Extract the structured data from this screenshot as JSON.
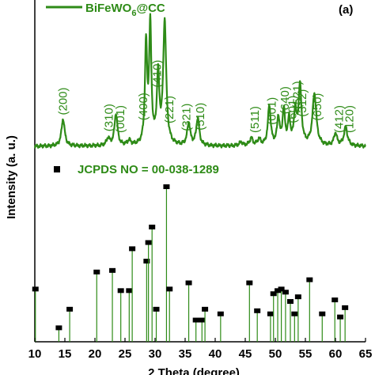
{
  "colors": {
    "pattern": "#2e8b17",
    "marker": "#000000",
    "axis": "#000000"
  },
  "chart_data": {
    "type": "line",
    "panel_label": "(a)",
    "xlabel": "2 Theta (degree)",
    "ylabel": "Intensity (a. u.)",
    "xlim": [
      10,
      65
    ],
    "x_ticks": [
      10,
      15,
      20,
      25,
      30,
      35,
      40,
      45,
      50,
      55,
      60,
      65
    ],
    "legend": [
      {
        "label": "BiFeWO6@CC",
        "label_main": "BiFeWO",
        "label_sub": "6",
        "label_tail": "@CC",
        "style": "green-line"
      },
      {
        "label": "JCPDS NO = 00-038-1289",
        "style": "black-square"
      }
    ],
    "series": [
      {
        "name": "BiFeWO6@CC",
        "baseline": 0.02,
        "peaks": [
          {
            "x": 14.7,
            "h": 0.22,
            "w": 0.32
          },
          {
            "x": 22.2,
            "h": 0.06,
            "w": 0.3
          },
          {
            "x": 23.5,
            "h": 0.26,
            "w": 0.3
          },
          {
            "x": 25.7,
            "h": 0.04,
            "w": 0.3
          },
          {
            "x": 28.5,
            "h": 0.8,
            "w": 0.22
          },
          {
            "x": 29.2,
            "h": 0.95,
            "w": 0.22
          },
          {
            "x": 30.5,
            "h": 0.55,
            "w": 0.25
          },
          {
            "x": 31.6,
            "h": 1.0,
            "w": 0.3
          },
          {
            "x": 35.6,
            "h": 0.18,
            "w": 0.3
          },
          {
            "x": 37.1,
            "h": 0.22,
            "w": 0.3
          },
          {
            "x": 44.3,
            "h": 0.03,
            "w": 0.3
          },
          {
            "x": 46.0,
            "h": 0.06,
            "w": 0.3
          },
          {
            "x": 47.3,
            "h": 0.05,
            "w": 0.3
          },
          {
            "x": 49.0,
            "h": 0.32,
            "w": 0.28
          },
          {
            "x": 50.5,
            "h": 0.22,
            "w": 0.25
          },
          {
            "x": 51.4,
            "h": 0.28,
            "w": 0.25
          },
          {
            "x": 52.3,
            "h": 0.2,
            "w": 0.25
          },
          {
            "x": 53.3,
            "h": 0.26,
            "w": 0.25
          },
          {
            "x": 54.1,
            "h": 0.48,
            "w": 0.3
          },
          {
            "x": 56.5,
            "h": 0.42,
            "w": 0.38
          },
          {
            "x": 60.0,
            "h": 0.1,
            "w": 0.3
          },
          {
            "x": 61.7,
            "h": 0.15,
            "w": 0.35
          }
        ],
        "peak_labels": [
          {
            "x": 14.7,
            "text": "(200)"
          },
          {
            "x": 22.3,
            "text": "(310)"
          },
          {
            "x": 24.2,
            "text": "(001)"
          },
          {
            "x": 28.0,
            "text": "(400)"
          },
          {
            "x": 30.3,
            "text": "(410)"
          },
          {
            "x": 32.4,
            "text": "(221)"
          },
          {
            "x": 35.2,
            "text": "(321)"
          },
          {
            "x": 37.5,
            "text": "(510)"
          },
          {
            "x": 46.6,
            "text": "(511)"
          },
          {
            "x": 49.4,
            "text": "(001)"
          },
          {
            "x": 51.6,
            "text": "(640)"
          },
          {
            "x": 52.8,
            "text": "(601)"
          },
          {
            "x": 53.6,
            "text": "(521)"
          },
          {
            "x": 54.5,
            "text": "(312)"
          },
          {
            "x": 57.0,
            "text": "(650)"
          },
          {
            "x": 60.6,
            "text": "(412)"
          },
          {
            "x": 62.3,
            "text": "(120)"
          }
        ]
      },
      {
        "name": "JCPDS NO = 00-038-1289",
        "type": "stick",
        "points": [
          {
            "x": 10.1,
            "y": 0.34
          },
          {
            "x": 14.0,
            "y": 0.09
          },
          {
            "x": 15.8,
            "y": 0.21
          },
          {
            "x": 20.3,
            "y": 0.45
          },
          {
            "x": 22.9,
            "y": 0.46
          },
          {
            "x": 24.3,
            "y": 0.33
          },
          {
            "x": 25.7,
            "y": 0.33
          },
          {
            "x": 26.2,
            "y": 0.6
          },
          {
            "x": 28.6,
            "y": 0.52
          },
          {
            "x": 28.9,
            "y": 0.64
          },
          {
            "x": 29.5,
            "y": 0.74
          },
          {
            "x": 30.2,
            "y": 0.21
          },
          {
            "x": 31.9,
            "y": 1.0
          },
          {
            "x": 32.4,
            "y": 0.34
          },
          {
            "x": 35.6,
            "y": 0.38
          },
          {
            "x": 36.8,
            "y": 0.14
          },
          {
            "x": 37.8,
            "y": 0.14
          },
          {
            "x": 38.3,
            "y": 0.21
          },
          {
            "x": 40.9,
            "y": 0.18
          },
          {
            "x": 45.7,
            "y": 0.38
          },
          {
            "x": 47.0,
            "y": 0.2
          },
          {
            "x": 49.2,
            "y": 0.18
          },
          {
            "x": 49.7,
            "y": 0.31
          },
          {
            "x": 50.4,
            "y": 0.33
          },
          {
            "x": 51.0,
            "y": 0.34
          },
          {
            "x": 51.7,
            "y": 0.32
          },
          {
            "x": 52.5,
            "y": 0.26
          },
          {
            "x": 53.2,
            "y": 0.18
          },
          {
            "x": 53.8,
            "y": 0.29
          },
          {
            "x": 55.7,
            "y": 0.4
          },
          {
            "x": 57.8,
            "y": 0.18
          },
          {
            "x": 59.9,
            "y": 0.27
          },
          {
            "x": 60.8,
            "y": 0.16
          },
          {
            "x": 61.6,
            "y": 0.22
          }
        ]
      }
    ]
  }
}
